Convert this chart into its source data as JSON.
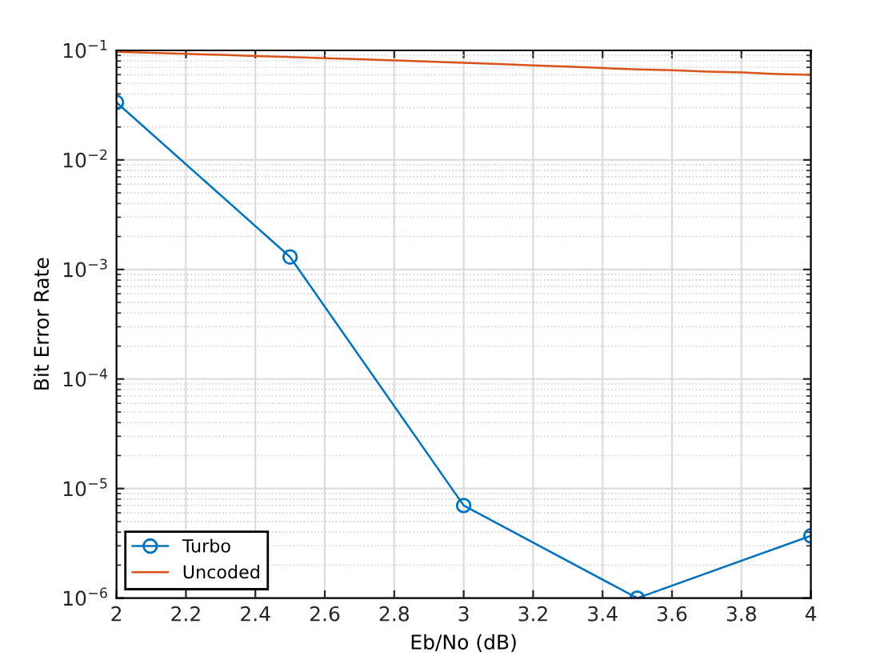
{
  "chart_data": {
    "type": "line",
    "xlabel": "Eb/No (dB)",
    "ylabel": "Bit Error Rate",
    "log": "y",
    "grid": true,
    "legend": "bottom left",
    "xlim": [
      2,
      4
    ],
    "xticks": [
      2,
      2.2,
      2.4,
      2.6,
      2.8,
      3,
      3.2,
      3.4,
      3.6,
      3.8,
      4
    ],
    "ylim": [
      1e-06,
      0.1
    ],
    "yticks": [
      {
        "value": 1e-06,
        "label": "10$^{−6}$"
      },
      {
        "value": 1e-05,
        "label": "10$^{−5}$"
      },
      {
        "value": 0.0001,
        "label": "10$^{−4}$"
      },
      {
        "value": 0.001,
        "label": "10$^{−3}$"
      },
      {
        "value": 0.01,
        "label": "10$^{−2}$"
      },
      {
        "value": 0.1,
        "label": "10$^{−1}$"
      }
    ],
    "series": [
      {
        "name": "Turbo",
        "color": "#0072bd",
        "marker": "circle",
        "x": [
          2,
          2.5,
          3,
          3.5,
          4
        ],
        "values": [
          0.0335,
          0.0013,
          7e-06,
          1e-06,
          3.7e-06
        ]
      },
      {
        "name": "Uncoded",
        "color": "#d95319",
        "marker": "none",
        "x": [
          2,
          2.1,
          2.2,
          2.3,
          2.4,
          2.5,
          2.6,
          2.7,
          2.8,
          2.9,
          3,
          3.1,
          3.2,
          3.3,
          3.4,
          3.5,
          3.6,
          3.7,
          3.8,
          3.9,
          4
        ],
        "values": [
          0.097,
          0.095,
          0.093,
          0.091,
          0.089,
          0.087,
          0.085,
          0.083,
          0.081,
          0.079,
          0.077,
          0.075,
          0.073,
          0.071,
          0.069,
          0.067,
          0.066,
          0.064,
          0.063,
          0.061,
          0.06
        ]
      }
    ]
  }
}
